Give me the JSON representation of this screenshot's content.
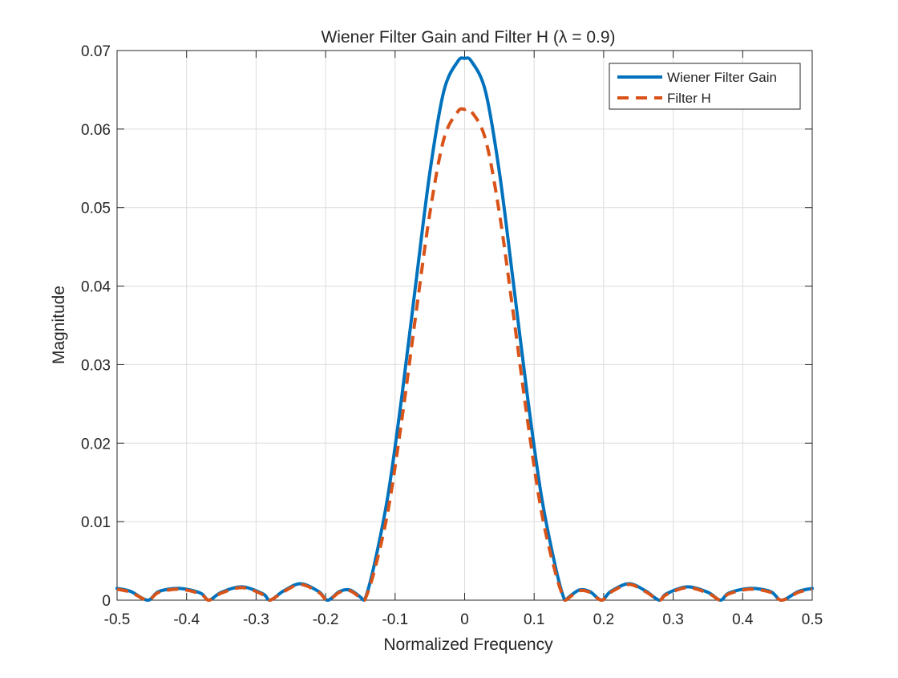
{
  "chart_data": {
    "type": "line",
    "title": "Wiener Filter Gain and Filter H (λ = 0.9)",
    "xlabel": "Normalized Frequency",
    "ylabel": "Magnitude",
    "xlim": [
      -0.5,
      0.5
    ],
    "ylim": [
      0,
      0.07
    ],
    "xticks": [
      -0.5,
      -0.4,
      -0.3,
      -0.2,
      -0.1,
      0,
      0.1,
      0.2,
      0.3,
      0.4,
      0.5
    ],
    "xtick_labels": [
      "-0.5",
      "-0.4",
      "-0.3",
      "-0.2",
      "-0.1",
      "0",
      "0.1",
      "0.2",
      "0.3",
      "0.4",
      "0.5"
    ],
    "yticks": [
      0,
      0.01,
      0.02,
      0.03,
      0.04,
      0.05,
      0.06,
      0.07
    ],
    "ytick_labels": [
      "0",
      "0.01",
      "0.02",
      "0.03",
      "0.04",
      "0.05",
      "0.06",
      "0.07"
    ],
    "grid": true,
    "legend_position": "top-right",
    "x": [
      -0.5,
      -0.48,
      -0.456,
      -0.44,
      -0.41,
      -0.38,
      -0.368,
      -0.35,
      -0.32,
      -0.29,
      -0.28,
      -0.26,
      -0.236,
      -0.21,
      -0.197,
      -0.18,
      -0.165,
      -0.15,
      -0.144,
      -0.13,
      -0.11,
      -0.09,
      -0.07,
      -0.05,
      -0.03,
      -0.01,
      0,
      0.01,
      0.03,
      0.05,
      0.07,
      0.09,
      0.11,
      0.13,
      0.144,
      0.15,
      0.165,
      0.18,
      0.197,
      0.21,
      0.236,
      0.26,
      0.28,
      0.29,
      0.32,
      0.35,
      0.368,
      0.38,
      0.41,
      0.44,
      0.456,
      0.48,
      0.5
    ],
    "series": [
      {
        "name": "Wiener Filter Gain",
        "color": "#0072BD",
        "dash": "solid",
        "values": [
          0.0015,
          0.0011,
          0,
          0.0011,
          0.0015,
          0.0009,
          0,
          0.001,
          0.0017,
          0.0008,
          0,
          0.0012,
          0.0021,
          0.0011,
          0,
          0.0011,
          0.0013,
          0.0004,
          0,
          0.0045,
          0.0135,
          0.0262,
          0.0405,
          0.0545,
          0.0648,
          0.0686,
          0.069,
          0.0686,
          0.0648,
          0.0545,
          0.0405,
          0.0262,
          0.0135,
          0.0045,
          0,
          0.0004,
          0.0013,
          0.0011,
          0,
          0.0011,
          0.0021,
          0.0012,
          0,
          0.0008,
          0.0017,
          0.001,
          0,
          0.0009,
          0.0015,
          0.0011,
          0,
          0.0011,
          0.0015
        ]
      },
      {
        "name": "Filter H",
        "color": "#D95319",
        "dash": "dashed",
        "values": [
          0.0014,
          0.001,
          0,
          0.001,
          0.0014,
          0.0008,
          0,
          0.0009,
          0.0016,
          0.0007,
          0,
          0.0011,
          0.002,
          0.001,
          0,
          0.001,
          0.0012,
          0.0003,
          0,
          0.0037,
          0.0115,
          0.0232,
          0.0365,
          0.0493,
          0.0587,
          0.0622,
          0.0625,
          0.0622,
          0.0587,
          0.0493,
          0.0365,
          0.0232,
          0.0115,
          0.0037,
          0,
          0.0003,
          0.0012,
          0.001,
          0,
          0.001,
          0.002,
          0.0011,
          0,
          0.0007,
          0.0016,
          0.0009,
          0,
          0.0008,
          0.0014,
          0.001,
          0,
          0.001,
          0.0014
        ]
      }
    ]
  }
}
